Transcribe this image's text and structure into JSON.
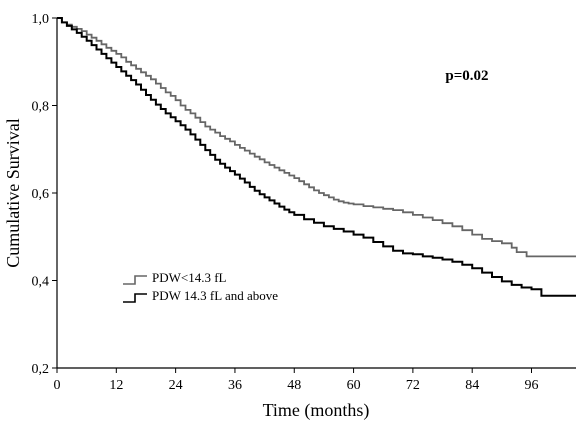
{
  "chart_data": {
    "type": "line",
    "title": "",
    "xlabel": "Time (months)",
    "ylabel": "Cumulative Survival",
    "xlim": [
      0,
      105
    ],
    "ylim": [
      0.2,
      1.0
    ],
    "x_ticks": [
      "0",
      "12",
      "24",
      "36",
      "48",
      "60",
      "72",
      "84",
      "96"
    ],
    "x_tick_values": [
      0,
      12,
      24,
      36,
      48,
      60,
      72,
      84,
      96
    ],
    "y_ticks": [
      "0,2",
      "0,4",
      "0,6",
      "0,8",
      "1,0"
    ],
    "y_tick_values": [
      0.2,
      0.4,
      0.6,
      0.8,
      1.0
    ],
    "grid": false,
    "legend_position": "lower-left",
    "annotations": [
      {
        "text": "p=0.02",
        "x": 90,
        "y": 0.91
      }
    ],
    "series": [
      {
        "name": "PDW<14.3 fL",
        "color": "#666666",
        "step": true,
        "points": [
          [
            0,
            1.0
          ],
          [
            1,
            0.99
          ],
          [
            2,
            0.985
          ],
          [
            3,
            0.98
          ],
          [
            4,
            0.975
          ],
          [
            5,
            0.97
          ],
          [
            6,
            0.962
          ],
          [
            7,
            0.955
          ],
          [
            8,
            0.948
          ],
          [
            9,
            0.94
          ],
          [
            10,
            0.932
          ],
          [
            11,
            0.925
          ],
          [
            12,
            0.918
          ],
          [
            13,
            0.91
          ],
          [
            14,
            0.9
          ],
          [
            15,
            0.892
          ],
          [
            16,
            0.884
          ],
          [
            17,
            0.876
          ],
          [
            18,
            0.868
          ],
          [
            19,
            0.86
          ],
          [
            20,
            0.85
          ],
          [
            21,
            0.84
          ],
          [
            22,
            0.83
          ],
          [
            23,
            0.822
          ],
          [
            24,
            0.812
          ],
          [
            25,
            0.8
          ],
          [
            26,
            0.79
          ],
          [
            27,
            0.782
          ],
          [
            28,
            0.772
          ],
          [
            29,
            0.762
          ],
          [
            30,
            0.752
          ],
          [
            31,
            0.745
          ],
          [
            32,
            0.738
          ],
          [
            33,
            0.73
          ],
          [
            34,
            0.724
          ],
          [
            35,
            0.718
          ],
          [
            36,
            0.71
          ],
          [
            37,
            0.703
          ],
          [
            38,
            0.697
          ],
          [
            39,
            0.69
          ],
          [
            40,
            0.683
          ],
          [
            41,
            0.677
          ],
          [
            42,
            0.67
          ],
          [
            43,
            0.664
          ],
          [
            44,
            0.658
          ],
          [
            45,
            0.652
          ],
          [
            46,
            0.646
          ],
          [
            47,
            0.64
          ],
          [
            48,
            0.634
          ],
          [
            49,
            0.627
          ],
          [
            50,
            0.62
          ],
          [
            51,
            0.613
          ],
          [
            52,
            0.606
          ],
          [
            53,
            0.6
          ],
          [
            54,
            0.595
          ],
          [
            55,
            0.59
          ],
          [
            56,
            0.585
          ],
          [
            57,
            0.581
          ],
          [
            58,
            0.578
          ],
          [
            59,
            0.576
          ],
          [
            60,
            0.574
          ],
          [
            62,
            0.57
          ],
          [
            64,
            0.567
          ],
          [
            66,
            0.564
          ],
          [
            68,
            0.561
          ],
          [
            70,
            0.556
          ],
          [
            72,
            0.55
          ],
          [
            74,
            0.544
          ],
          [
            76,
            0.538
          ],
          [
            78,
            0.531
          ],
          [
            80,
            0.524
          ],
          [
            82,
            0.515
          ],
          [
            84,
            0.505
          ],
          [
            86,
            0.495
          ],
          [
            88,
            0.49
          ],
          [
            90,
            0.485
          ],
          [
            92,
            0.475
          ],
          [
            93,
            0.465
          ],
          [
            95,
            0.455
          ],
          [
            105,
            0.455
          ]
        ]
      },
      {
        "name": "PDW 14.3 fL and above",
        "color": "#000000",
        "step": true,
        "points": [
          [
            0,
            1.0
          ],
          [
            1,
            0.99
          ],
          [
            2,
            0.982
          ],
          [
            3,
            0.974
          ],
          [
            4,
            0.966
          ],
          [
            5,
            0.957
          ],
          [
            6,
            0.948
          ],
          [
            7,
            0.938
          ],
          [
            8,
            0.928
          ],
          [
            9,
            0.918
          ],
          [
            10,
            0.908
          ],
          [
            11,
            0.898
          ],
          [
            12,
            0.888
          ],
          [
            13,
            0.878
          ],
          [
            14,
            0.868
          ],
          [
            15,
            0.858
          ],
          [
            16,
            0.848
          ],
          [
            17,
            0.836
          ],
          [
            18,
            0.824
          ],
          [
            19,
            0.813
          ],
          [
            20,
            0.802
          ],
          [
            21,
            0.792
          ],
          [
            22,
            0.782
          ],
          [
            23,
            0.773
          ],
          [
            24,
            0.764
          ],
          [
            25,
            0.755
          ],
          [
            26,
            0.745
          ],
          [
            27,
            0.734
          ],
          [
            28,
            0.722
          ],
          [
            29,
            0.71
          ],
          [
            30,
            0.698
          ],
          [
            31,
            0.687
          ],
          [
            32,
            0.676
          ],
          [
            33,
            0.667
          ],
          [
            34,
            0.658
          ],
          [
            35,
            0.65
          ],
          [
            36,
            0.642
          ],
          [
            37,
            0.633
          ],
          [
            38,
            0.624
          ],
          [
            39,
            0.614
          ],
          [
            40,
            0.605
          ],
          [
            41,
            0.597
          ],
          [
            42,
            0.59
          ],
          [
            43,
            0.583
          ],
          [
            44,
            0.576
          ],
          [
            45,
            0.569
          ],
          [
            46,
            0.562
          ],
          [
            47,
            0.556
          ],
          [
            48,
            0.55
          ],
          [
            50,
            0.54
          ],
          [
            52,
            0.532
          ],
          [
            54,
            0.524
          ],
          [
            56,
            0.518
          ],
          [
            58,
            0.512
          ],
          [
            60,
            0.505
          ],
          [
            62,
            0.498
          ],
          [
            64,
            0.488
          ],
          [
            66,
            0.478
          ],
          [
            68,
            0.468
          ],
          [
            70,
            0.462
          ],
          [
            72,
            0.46
          ],
          [
            74,
            0.455
          ],
          [
            76,
            0.452
          ],
          [
            78,
            0.448
          ],
          [
            80,
            0.443
          ],
          [
            82,
            0.436
          ],
          [
            84,
            0.428
          ],
          [
            86,
            0.418
          ],
          [
            88,
            0.408
          ],
          [
            90,
            0.398
          ],
          [
            92,
            0.39
          ],
          [
            94,
            0.384
          ],
          [
            96,
            0.38
          ],
          [
            98,
            0.365
          ],
          [
            105,
            0.365
          ]
        ]
      }
    ]
  }
}
